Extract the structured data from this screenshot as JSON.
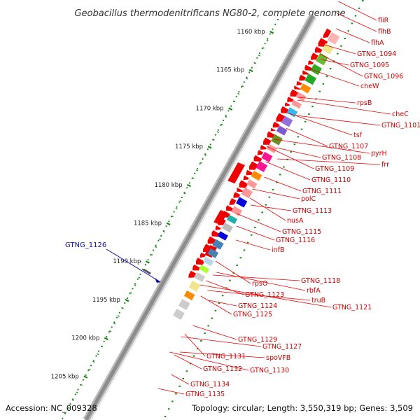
{
  "title": "Geobacillus thermodenitrificans NG80-2, complete genome",
  "footer": {
    "accession": "Accession: NC_009328",
    "topology": "Topology: circular; Length: 3,550,319 bp; Genes: 3,509"
  },
  "scale_ticks": [
    "1160 kbp",
    "1165 kbp",
    "1170 kbp",
    "1175 kbp",
    "1180 kbp",
    "1185 kbp",
    "1190 kbp",
    "1195 kbp",
    "1200 kbp",
    "1205 kbp"
  ],
  "left_labels": [
    {
      "name": "GTNG_1126",
      "color": "#1010b0"
    }
  ],
  "right_labels": [
    "fliR",
    "flhB",
    "flhA",
    "GTNG_1094",
    "GTNG_1095",
    "GTNG_1096",
    "cheW",
    "cheC",
    "GTNG_1101",
    "rpsB",
    "tsf",
    "GTNG_1107",
    "pyrH",
    "GTNG_1108",
    "frr",
    "GTNG_1109",
    "GTNG_1110",
    "GTNG_1111",
    "polC",
    "GTNG_1113",
    "nusA",
    "GTNG_1115",
    "GTNG_1116",
    "infB",
    "GTNG_1118",
    "rpsO",
    "rbfA",
    "GTNG_1123",
    "truB",
    "GTNG_1124",
    "GTNG_1121",
    "GTNG_1125",
    "GTNG_1129",
    "GTNG_1127",
    "spoVFB",
    "GTNG_1131",
    "GTNG_1130",
    "GTNG_1132",
    "GTNG_1134",
    "GTNG_1135"
  ],
  "colors": {
    "cds": "#ee0000",
    "backbone": "#999999",
    "label_line": "#ee0000",
    "tick_green": "#1a8a1a",
    "highlight": "#1010b0"
  },
  "cog_track": [
    {
      "color": "#ffb3b3"
    },
    {
      "color": "#f0e68c"
    },
    {
      "color": "#66bb33"
    },
    {
      "color": "#33aa22"
    },
    {
      "color": "#22aa22"
    },
    {
      "color": "#ff8c00"
    },
    {
      "color": "#ff9999"
    },
    {
      "color": "#ff9999"
    },
    {
      "color": "#33b8f0"
    },
    {
      "color": "#9370db"
    },
    {
      "color": "#7a5acd"
    },
    {
      "color": "#6b8e23"
    },
    {
      "color": "#ff9999"
    },
    {
      "color": "#ff1493"
    },
    {
      "color": "#ff1493"
    },
    {
      "color": "#ff8c00"
    },
    {
      "color": "#ff9999"
    },
    {
      "color": "#ff9999"
    },
    {
      "color": "#0000dd"
    },
    {
      "color": "#ff9999"
    },
    {
      "color": "#20b2aa"
    },
    {
      "color": "#bbbbbb"
    },
    {
      "color": "#0000dd"
    },
    {
      "color": "#4682b4"
    },
    {
      "color": "#4682b4"
    },
    {
      "color": "#b8d8e8"
    },
    {
      "color": "#adff2f"
    },
    {
      "color": "#cccccc"
    },
    {
      "color": "#f0e68c"
    },
    {
      "color": "#ff8c00"
    },
    {
      "color": "#cccccc"
    },
    {
      "color": "#cccccc"
    }
  ]
}
